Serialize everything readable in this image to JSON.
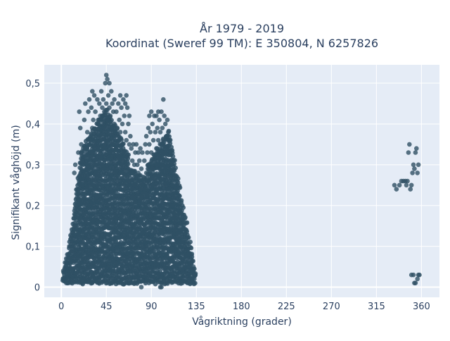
{
  "chart_data": {
    "type": "scatter",
    "title_line1": "År 1979 - 2019",
    "title_line2": "Koordinat (Sweref 99 TM): E 350804, N 6257826",
    "xlabel": "Vågriktning (grader)",
    "ylabel": "Signifikant våghöjd (m)",
    "xlim": [
      -17,
      378
    ],
    "ylim": [
      -0.025,
      0.545
    ],
    "xticks": [
      0,
      45,
      90,
      135,
      180,
      225,
      270,
      315,
      360
    ],
    "xtick_labels": [
      "0",
      "45",
      "90",
      "135",
      "180",
      "225",
      "270",
      "315",
      "360"
    ],
    "yticks": [
      0,
      0.1,
      0.2,
      0.3,
      0.4,
      0.5
    ],
    "ytick_labels": [
      "0",
      "0,1",
      "0,2",
      "0,3",
      "0,4",
      "0,5"
    ],
    "grid": true,
    "marker_color": "#2f5064",
    "background_color": "#e5ecf6",
    "points": [
      [
        2,
        0.02
      ],
      [
        2,
        0.04
      ],
      [
        3,
        0.03
      ],
      [
        4,
        0.05
      ],
      [
        5,
        0.01
      ],
      [
        5,
        0.06
      ],
      [
        6,
        0.03
      ],
      [
        6,
        0.08
      ],
      [
        7,
        0.02
      ],
      [
        8,
        0.05
      ],
      [
        8,
        0.1
      ],
      [
        9,
        0.07
      ],
      [
        10,
        0.04
      ],
      [
        10,
        0.12
      ],
      [
        11,
        0.02
      ],
      [
        11,
        0.09
      ],
      [
        12,
        0.06
      ],
      [
        13,
        0.15
      ],
      [
        13,
        0.28
      ],
      [
        14,
        0.1
      ],
      [
        14,
        0.3
      ],
      [
        15,
        0.2
      ],
      [
        16,
        0.24
      ],
      [
        16,
        0.08
      ],
      [
        17,
        0.33
      ],
      [
        17,
        0.13
      ],
      [
        18,
        0.21
      ],
      [
        18,
        0.43
      ],
      [
        19,
        0.17
      ],
      [
        19,
        0.39
      ],
      [
        20,
        0.25
      ],
      [
        20,
        0.35
      ],
      [
        21,
        0.31
      ],
      [
        21,
        0.12
      ],
      [
        22,
        0.27
      ],
      [
        22,
        0.18
      ],
      [
        23,
        0.41
      ],
      [
        23,
        0.22
      ],
      [
        24,
        0.34
      ],
      [
        24,
        0.45
      ],
      [
        25,
        0.29
      ],
      [
        25,
        0.16
      ],
      [
        26,
        0.38
      ],
      [
        26,
        0.24
      ],
      [
        27,
        0.43
      ],
      [
        27,
        0.32
      ],
      [
        28,
        0.46
      ],
      [
        28,
        0.2
      ],
      [
        29,
        0.36
      ],
      [
        29,
        0.27
      ],
      [
        30,
        0.44
      ],
      [
        30,
        0.33
      ],
      [
        31,
        0.48
      ],
      [
        31,
        0.39
      ],
      [
        32,
        0.41
      ],
      [
        32,
        0.25
      ],
      [
        33,
        0.47
      ],
      [
        33,
        0.35
      ],
      [
        34,
        0.43
      ],
      [
        34,
        0.3
      ],
      [
        35,
        0.38
      ],
      [
        35,
        0.22
      ],
      [
        36,
        0.46
      ],
      [
        36,
        0.34
      ],
      [
        37,
        0.41
      ],
      [
        37,
        0.28
      ],
      [
        38,
        0.37
      ],
      [
        38,
        0.45
      ],
      [
        39,
        0.32
      ],
      [
        39,
        0.42
      ],
      [
        40,
        0.48
      ],
      [
        40,
        0.36
      ],
      [
        41,
        0.44
      ],
      [
        41,
        0.3
      ],
      [
        42,
        0.4
      ],
      [
        42,
        0.46
      ],
      [
        43,
        0.35
      ],
      [
        43,
        0.43
      ],
      [
        44,
        0.5
      ],
      [
        44,
        0.39
      ],
      [
        45,
        0.52
      ],
      [
        45,
        0.45
      ],
      [
        46,
        0.51
      ],
      [
        46,
        0.41
      ],
      [
        47,
        0.47
      ],
      [
        47,
        0.36
      ],
      [
        48,
        0.5
      ],
      [
        48,
        0.44
      ],
      [
        49,
        0.42
      ],
      [
        49,
        0.33
      ],
      [
        50,
        0.48
      ],
      [
        50,
        0.38
      ],
      [
        51,
        0.45
      ],
      [
        51,
        0.35
      ],
      [
        52,
        0.43
      ],
      [
        52,
        0.31
      ],
      [
        53,
        0.4
      ],
      [
        53,
        0.46
      ],
      [
        54,
        0.37
      ],
      [
        54,
        0.28
      ],
      [
        55,
        0.43
      ],
      [
        55,
        0.34
      ],
      [
        56,
        0.39
      ],
      [
        56,
        0.29
      ],
      [
        57,
        0.45
      ],
      [
        57,
        0.36
      ],
      [
        58,
        0.41
      ],
      [
        58,
        0.32
      ],
      [
        59,
        0.47
      ],
      [
        59,
        0.38
      ],
      [
        60,
        0.44
      ],
      [
        60,
        0.3
      ],
      [
        61,
        0.4
      ],
      [
        61,
        0.35
      ],
      [
        62,
        0.46
      ],
      [
        62,
        0.33
      ],
      [
        63,
        0.42
      ],
      [
        63,
        0.28
      ],
      [
        64,
        0.38
      ],
      [
        64,
        0.45
      ],
      [
        65,
        0.47
      ],
      [
        65,
        0.36
      ],
      [
        66,
        0.44
      ],
      [
        66,
        0.32
      ],
      [
        67,
        0.4
      ],
      [
        67,
        0.29
      ],
      [
        68,
        0.42
      ],
      [
        68,
        0.35
      ],
      [
        69,
        0.37
      ],
      [
        69,
        0.26
      ],
      [
        70,
        0.34
      ],
      [
        70,
        0.28
      ],
      [
        71,
        0.31
      ],
      [
        71,
        0.24
      ],
      [
        72,
        0.35
      ],
      [
        72,
        0.22
      ],
      [
        73,
        0.3
      ],
      [
        73,
        0.25
      ],
      [
        74,
        0.33
      ],
      [
        74,
        0.21
      ],
      [
        75,
        0.35
      ],
      [
        75,
        0.27
      ],
      [
        76,
        0.3
      ],
      [
        76,
        0.23
      ],
      [
        77,
        0.28
      ],
      [
        77,
        0.33
      ],
      [
        78,
        0.26
      ],
      [
        78,
        0.31
      ],
      [
        79,
        0.34
      ],
      [
        79,
        0.24
      ],
      [
        80,
        0.29
      ],
      [
        80,
        0.22
      ],
      [
        81,
        0.33
      ],
      [
        81,
        0.25
      ],
      [
        82,
        0.27
      ],
      [
        82,
        0.23
      ],
      [
        83,
        0.31
      ],
      [
        83,
        0.26
      ],
      [
        84,
        0.35
      ],
      [
        84,
        0.24
      ],
      [
        85,
        0.37
      ],
      [
        85,
        0.28
      ],
      [
        86,
        0.33
      ],
      [
        86,
        0.26
      ],
      [
        87,
        0.39
      ],
      [
        87,
        0.3
      ],
      [
        88,
        0.42
      ],
      [
        88,
        0.35
      ],
      [
        89,
        0.38
      ],
      [
        89,
        0.27
      ],
      [
        90,
        0.43
      ],
      [
        90,
        0.33
      ],
      [
        91,
        0.4
      ],
      [
        91,
        0.29
      ],
      [
        92,
        0.36
      ],
      [
        92,
        0.25
      ],
      [
        93,
        0.42
      ],
      [
        93,
        0.31
      ],
      [
        94,
        0.38
      ],
      [
        94,
        0.27
      ],
      [
        95,
        0.34
      ],
      [
        95,
        0.42
      ],
      [
        96,
        0.3
      ],
      [
        96,
        0.39
      ],
      [
        97,
        0.43
      ],
      [
        97,
        0.36
      ],
      [
        98,
        0.41
      ],
      [
        98,
        0.32
      ],
      [
        99,
        0.38
      ],
      [
        99,
        0.28
      ],
      [
        100,
        0.43
      ],
      [
        100,
        0.35
      ],
      [
        101,
        0.39
      ],
      [
        101,
        0.3
      ],
      [
        102,
        0.46
      ],
      [
        102,
        0.36
      ],
      [
        103,
        0.42
      ],
      [
        103,
        0.33
      ],
      [
        104,
        0.4
      ],
      [
        104,
        0.29
      ],
      [
        105,
        0.37
      ],
      [
        105,
        0.27
      ],
      [
        106,
        0.41
      ],
      [
        106,
        0.34
      ],
      [
        107,
        0.38
      ],
      [
        107,
        0.3
      ],
      [
        108,
        0.36
      ],
      [
        108,
        0.24
      ],
      [
        109,
        0.33
      ],
      [
        109,
        0.27
      ],
      [
        110,
        0.29
      ],
      [
        110,
        0.23
      ],
      [
        111,
        0.25
      ],
      [
        111,
        0.2
      ],
      [
        112,
        0.22
      ],
      [
        112,
        0.17
      ],
      [
        113,
        0.18
      ],
      [
        113,
        0.14
      ],
      [
        114,
        0.16
      ],
      [
        114,
        0.12
      ],
      [
        115,
        0.15
      ],
      [
        116,
        0.13
      ],
      [
        117,
        0.12
      ],
      [
        118,
        0.11
      ],
      [
        119,
        0.1
      ],
      [
        120,
        0.13
      ],
      [
        121,
        0.11
      ],
      [
        122,
        0.09
      ],
      [
        123,
        0.1
      ],
      [
        124,
        0.08
      ],
      [
        125,
        0.09
      ],
      [
        126,
        0.07
      ],
      [
        127,
        0.08
      ],
      [
        128,
        0.06
      ],
      [
        129,
        0.05
      ],
      [
        130,
        0.06
      ],
      [
        131,
        0.04
      ],
      [
        132,
        0.05
      ],
      [
        133,
        0.03
      ],
      [
        134,
        0.03
      ],
      [
        80,
        0.0
      ],
      [
        99,
        0.0
      ],
      [
        100,
        0.0
      ],
      [
        121,
        0.01
      ],
      [
        127,
        0.01
      ],
      [
        131,
        0.02
      ],
      [
        133,
        0.02
      ],
      [
        333,
        0.25
      ],
      [
        335,
        0.24
      ],
      [
        338,
        0.25
      ],
      [
        340,
        0.26
      ],
      [
        342,
        0.26
      ],
      [
        344,
        0.26
      ],
      [
        345,
        0.25
      ],
      [
        346,
        0.26
      ],
      [
        347,
        0.33
      ],
      [
        348,
        0.35
      ],
      [
        349,
        0.24
      ],
      [
        350,
        0.25
      ],
      [
        351,
        0.28
      ],
      [
        352,
        0.3
      ],
      [
        353,
        0.29
      ],
      [
        354,
        0.33
      ],
      [
        355,
        0.34
      ],
      [
        356,
        0.28
      ],
      [
        357,
        0.3
      ],
      [
        350,
        0.03
      ],
      [
        352,
        0.03
      ],
      [
        353,
        0.01
      ],
      [
        354,
        0.01
      ],
      [
        356,
        0.02
      ],
      [
        357,
        0.03
      ],
      [
        358,
        0.03
      ]
    ]
  }
}
